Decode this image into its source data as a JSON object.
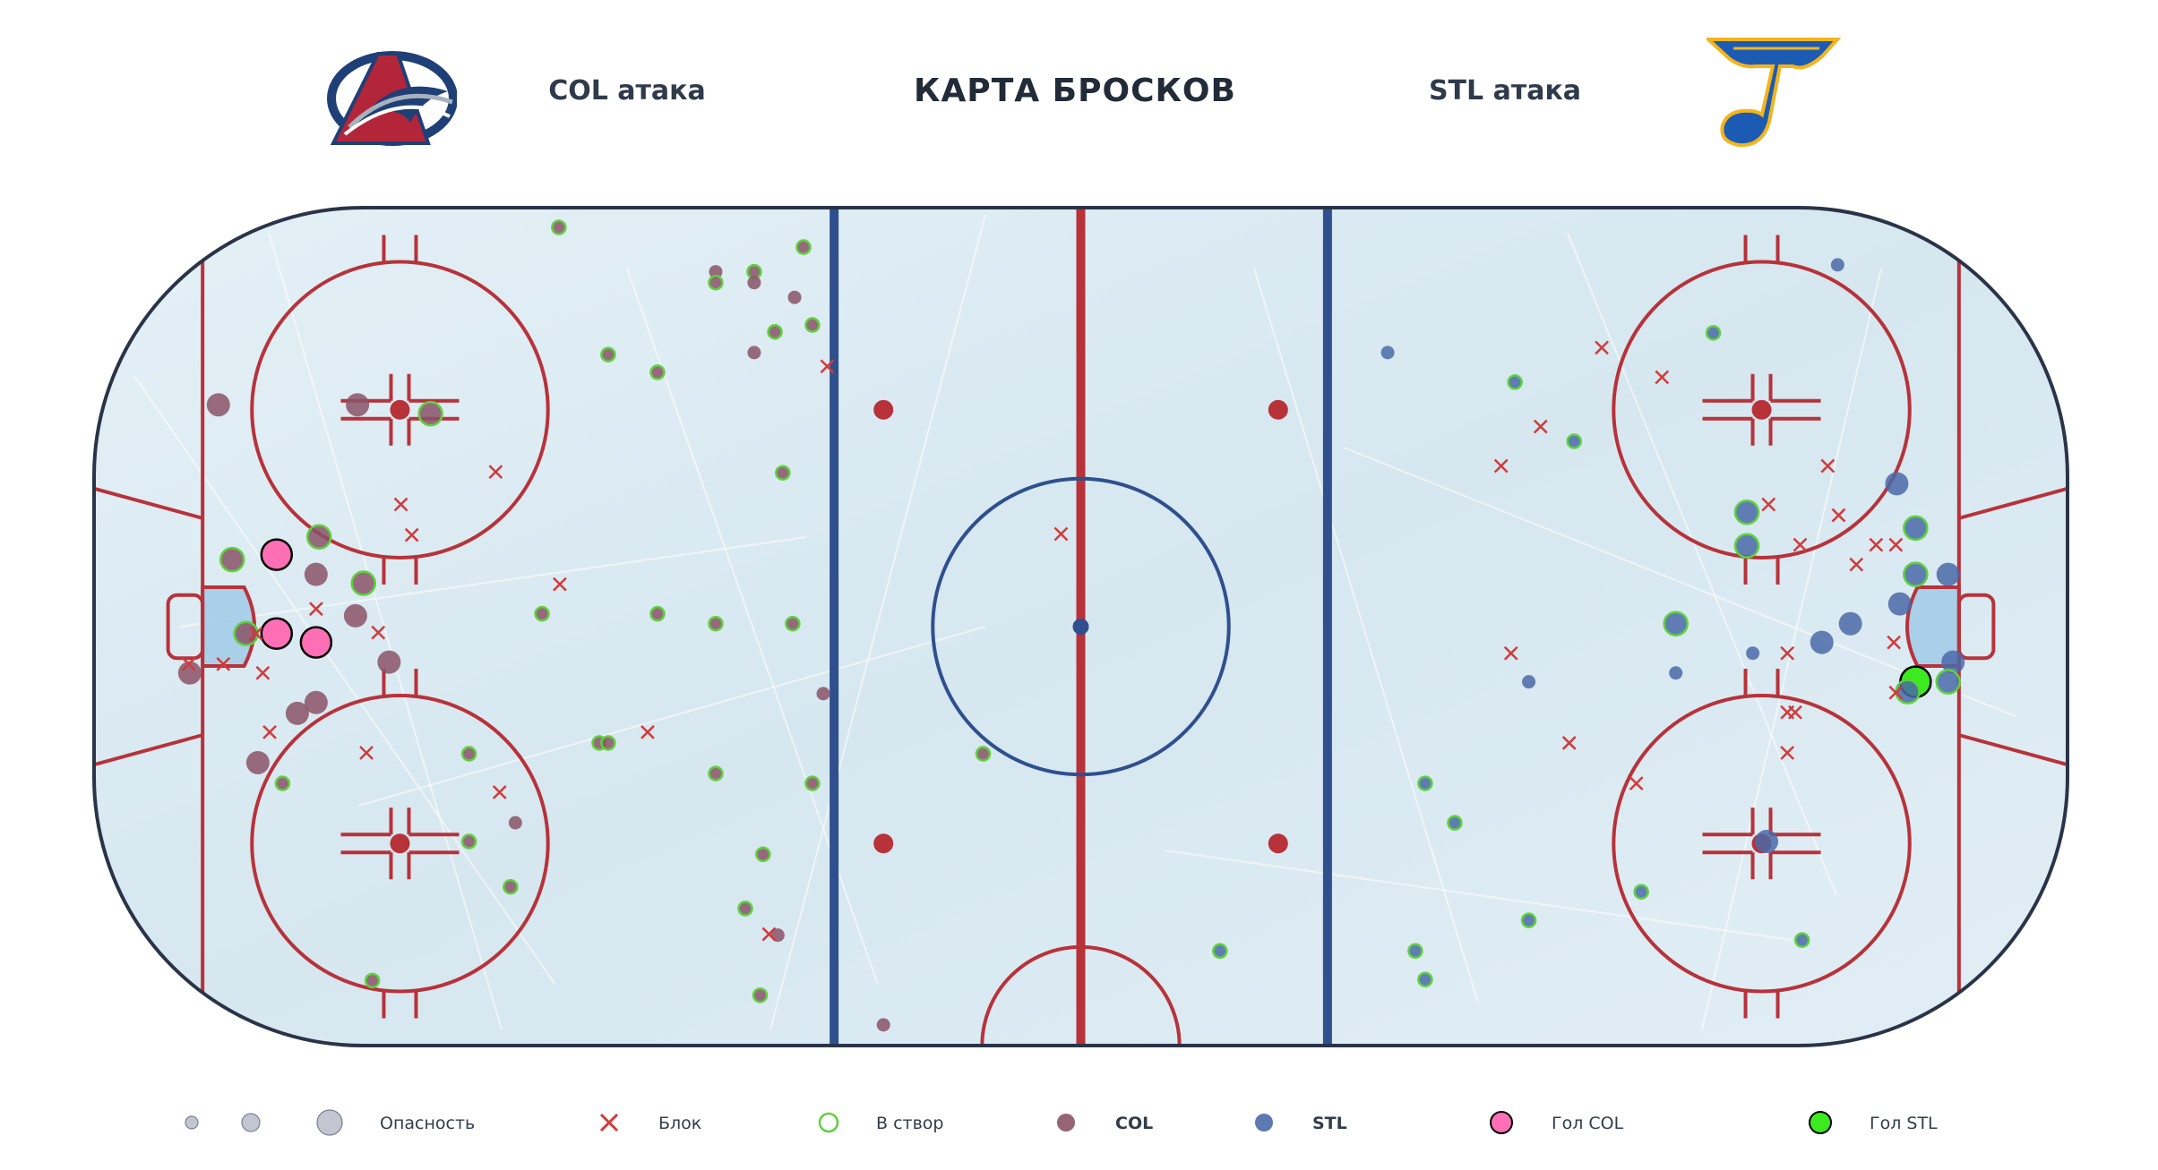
{
  "header": {
    "title": "КАРТА БРОСКОВ",
    "left_team": "COL атака",
    "right_team": "STL атака"
  },
  "teams": {
    "col": {
      "abbr": "COL",
      "logo": "avalanche-logo",
      "color": "#8a5467",
      "goal_color": "#ff6fb5"
    },
    "stl": {
      "abbr": "STL",
      "logo": "blues-note-logo",
      "color": "#4a6aa8",
      "goal_color": "#3bea1f"
    }
  },
  "legend": {
    "danger_label": "Опасность",
    "block_label": "Блок",
    "on_target_label": "В створ",
    "col_label": "COL",
    "stl_label": "STL",
    "goal_col_label": "Гол COL",
    "goal_stl_label": "Гол STL"
  },
  "colors": {
    "ice": "#dcebf3",
    "red_line": "#b8323a",
    "blue_line": "#2f4f8f",
    "board": "#2a3448",
    "block": "#d23a3a",
    "on_target_ring": "#5ed23c"
  },
  "chart_data": {
    "type": "scatter",
    "title": "КАРТА БРОСКОВ",
    "x_range": [
      -100,
      100
    ],
    "y_range": [
      -42.5,
      42.5
    ],
    "shots": [
      {
        "team": "COL",
        "x": -52.9,
        "y": 40.5,
        "size": 1,
        "on_target": true
      },
      {
        "team": "COL",
        "x": -37.0,
        "y": 36.0,
        "size": 1,
        "on_target": false
      },
      {
        "team": "COL",
        "x": -37.0,
        "y": 34.9,
        "size": 1,
        "on_target": true
      },
      {
        "team": "COL",
        "x": -33.1,
        "y": 36.0,
        "size": 1,
        "on_target": true
      },
      {
        "team": "COL",
        "x": -33.1,
        "y": 34.9,
        "size": 1,
        "on_target": false
      },
      {
        "team": "COL",
        "x": -28.1,
        "y": 38.5,
        "size": 1,
        "on_target": true
      },
      {
        "team": "COL",
        "x": -29.0,
        "y": 33.4,
        "size": 1,
        "on_target": false
      },
      {
        "team": "COL",
        "x": -31.0,
        "y": 29.9,
        "size": 1,
        "on_target": true
      },
      {
        "team": "COL",
        "x": -27.2,
        "y": 30.6,
        "size": 1,
        "on_target": true
      },
      {
        "team": "COL",
        "x": -33.1,
        "y": 27.8,
        "size": 1,
        "on_target": false
      },
      {
        "team": "COL",
        "x": -47.9,
        "y": 27.6,
        "size": 1,
        "on_target": true
      },
      {
        "team": "COL",
        "x": -42.9,
        "y": 25.8,
        "size": 1,
        "on_target": true
      },
      {
        "team": "COL",
        "x": -87.4,
        "y": 22.5,
        "size": 2,
        "on_target": false
      },
      {
        "team": "COL",
        "x": -73.3,
        "y": 22.5,
        "size": 2,
        "on_target": false
      },
      {
        "team": "COL",
        "x": -65.9,
        "y": 21.6,
        "size": 2,
        "on_target": true
      },
      {
        "team": "COL",
        "x": -30.2,
        "y": 15.6,
        "size": 1,
        "on_target": true
      },
      {
        "team": "COL",
        "x": -77.2,
        "y": 9.1,
        "size": 2,
        "on_target": true
      },
      {
        "team": "COL",
        "x": -86.0,
        "y": 6.8,
        "size": 2,
        "on_target": true
      },
      {
        "team": "COL",
        "x": -81.5,
        "y": 7.3,
        "size": 3,
        "on_target": true,
        "goal": true
      },
      {
        "team": "COL",
        "x": -77.5,
        "y": 5.3,
        "size": 2,
        "on_target": false
      },
      {
        "team": "COL",
        "x": -72.7,
        "y": 4.4,
        "size": 2,
        "on_target": true
      },
      {
        "team": "COL",
        "x": -54.6,
        "y": 1.3,
        "size": 1,
        "on_target": true
      },
      {
        "team": "COL",
        "x": -42.9,
        "y": 1.3,
        "size": 1,
        "on_target": true
      },
      {
        "team": "COL",
        "x": -37.0,
        "y": 0.3,
        "size": 1,
        "on_target": true
      },
      {
        "team": "COL",
        "x": -29.2,
        "y": 0.3,
        "size": 1,
        "on_target": true
      },
      {
        "team": "COL",
        "x": -73.5,
        "y": 1.1,
        "size": 2,
        "on_target": false
      },
      {
        "team": "COL",
        "x": -84.6,
        "y": -0.7,
        "size": 2,
        "on_target": true
      },
      {
        "team": "COL",
        "x": -81.5,
        "y": -0.7,
        "size": 3,
        "on_target": true,
        "goal": true
      },
      {
        "team": "COL",
        "x": -77.5,
        "y": -1.6,
        "size": 3,
        "on_target": true,
        "goal": true
      },
      {
        "team": "COL",
        "x": -70.1,
        "y": -3.6,
        "size": 2,
        "on_target": false
      },
      {
        "team": "COL",
        "x": -90.3,
        "y": -4.7,
        "size": 2,
        "on_target": false
      },
      {
        "team": "COL",
        "x": -26.1,
        "y": -6.8,
        "size": 1,
        "on_target": false
      },
      {
        "team": "COL",
        "x": -77.5,
        "y": -7.7,
        "size": 2,
        "on_target": false
      },
      {
        "team": "COL",
        "x": -79.4,
        "y": -8.8,
        "size": 2,
        "on_target": false
      },
      {
        "team": "COL",
        "x": -48.8,
        "y": -11.8,
        "size": 1,
        "on_target": true
      },
      {
        "team": "COL",
        "x": -47.9,
        "y": -11.8,
        "size": 1,
        "on_target": true
      },
      {
        "team": "COL",
        "x": -9.9,
        "y": -12.9,
        "size": 1,
        "on_target": true
      },
      {
        "team": "COL",
        "x": -62.0,
        "y": -12.9,
        "size": 1,
        "on_target": true
      },
      {
        "team": "COL",
        "x": -83.4,
        "y": -13.8,
        "size": 2,
        "on_target": false
      },
      {
        "team": "COL",
        "x": -37.0,
        "y": -14.9,
        "size": 1,
        "on_target": true
      },
      {
        "team": "COL",
        "x": -80.9,
        "y": -15.9,
        "size": 1,
        "on_target": true
      },
      {
        "team": "COL",
        "x": -27.2,
        "y": -15.9,
        "size": 1,
        "on_target": true
      },
      {
        "team": "COL",
        "x": -57.3,
        "y": -19.9,
        "size": 1,
        "on_target": false
      },
      {
        "team": "COL",
        "x": -62.0,
        "y": -21.8,
        "size": 1,
        "on_target": true
      },
      {
        "team": "COL",
        "x": -32.2,
        "y": -23.1,
        "size": 1,
        "on_target": true
      },
      {
        "team": "COL",
        "x": -57.8,
        "y": -26.4,
        "size": 1,
        "on_target": true
      },
      {
        "team": "COL",
        "x": -34.0,
        "y": -28.6,
        "size": 1,
        "on_target": true
      },
      {
        "team": "COL",
        "x": -30.7,
        "y": -31.3,
        "size": 1,
        "on_target": false
      },
      {
        "team": "COL",
        "x": -71.8,
        "y": -35.9,
        "size": 1,
        "on_target": true
      },
      {
        "team": "COL",
        "x": -32.5,
        "y": -37.4,
        "size": 1,
        "on_target": true
      },
      {
        "team": "COL",
        "x": -20.0,
        "y": -40.4,
        "size": 1,
        "on_target": false
      },
      {
        "team": "STL",
        "x": 76.7,
        "y": 36.7,
        "size": 1,
        "on_target": false
      },
      {
        "team": "STL",
        "x": 64.1,
        "y": 29.8,
        "size": 1,
        "on_target": true
      },
      {
        "team": "STL",
        "x": 31.1,
        "y": 27.8,
        "size": 1,
        "on_target": false
      },
      {
        "team": "STL",
        "x": 44.0,
        "y": 24.8,
        "size": 1,
        "on_target": true
      },
      {
        "team": "STL",
        "x": 50.0,
        "y": 18.8,
        "size": 1,
        "on_target": true
      },
      {
        "team": "STL",
        "x": 82.7,
        "y": 14.5,
        "size": 2,
        "on_target": false
      },
      {
        "team": "STL",
        "x": 84.6,
        "y": 10.0,
        "size": 2,
        "on_target": true
      },
      {
        "team": "STL",
        "x": 67.5,
        "y": 11.6,
        "size": 2,
        "on_target": true
      },
      {
        "team": "STL",
        "x": 67.5,
        "y": 8.2,
        "size": 2,
        "on_target": true
      },
      {
        "team": "STL",
        "x": 84.6,
        "y": 5.3,
        "size": 2,
        "on_target": true
      },
      {
        "team": "STL",
        "x": 87.9,
        "y": 5.3,
        "size": 2,
        "on_target": false
      },
      {
        "team": "STL",
        "x": 83.0,
        "y": 2.3,
        "size": 2,
        "on_target": false
      },
      {
        "team": "STL",
        "x": 78.0,
        "y": 0.3,
        "size": 2,
        "on_target": false
      },
      {
        "team": "STL",
        "x": 60.3,
        "y": 0.3,
        "size": 2,
        "on_target": true
      },
      {
        "team": "STL",
        "x": 75.1,
        "y": -1.6,
        "size": 2,
        "on_target": false
      },
      {
        "team": "STL",
        "x": 68.1,
        "y": -2.7,
        "size": 1,
        "on_target": false
      },
      {
        "team": "STL",
        "x": 88.4,
        "y": -3.6,
        "size": 2,
        "on_target": false
      },
      {
        "team": "STL",
        "x": 60.3,
        "y": -4.7,
        "size": 1,
        "on_target": false
      },
      {
        "team": "STL",
        "x": 45.4,
        "y": -5.6,
        "size": 1,
        "on_target": false
      },
      {
        "team": "STL",
        "x": 84.6,
        "y": -5.6,
        "size": 3,
        "on_target": true,
        "goal": true
      },
      {
        "team": "STL",
        "x": 87.9,
        "y": -5.6,
        "size": 2,
        "on_target": true
      },
      {
        "team": "STL",
        "x": 83.8,
        "y": -6.6,
        "size": 2,
        "on_target": true
      },
      {
        "team": "STL",
        "x": 34.9,
        "y": -15.9,
        "size": 1,
        "on_target": true
      },
      {
        "team": "STL",
        "x": 37.9,
        "y": -19.9,
        "size": 1,
        "on_target": true
      },
      {
        "team": "STL",
        "x": 69.5,
        "y": -21.8,
        "size": 2,
        "on_target": false
      },
      {
        "team": "STL",
        "x": 56.8,
        "y": -26.9,
        "size": 1,
        "on_target": true
      },
      {
        "team": "STL",
        "x": 45.4,
        "y": -29.8,
        "size": 1,
        "on_target": true
      },
      {
        "team": "STL",
        "x": 33.9,
        "y": -32.9,
        "size": 1,
        "on_target": true
      },
      {
        "team": "STL",
        "x": 73.1,
        "y": -31.8,
        "size": 1,
        "on_target": true
      },
      {
        "team": "STL",
        "x": 14.1,
        "y": -32.9,
        "size": 1,
        "on_target": true
      },
      {
        "team": "STL",
        "x": 34.9,
        "y": -35.8,
        "size": 1,
        "on_target": true
      }
    ],
    "blocks": [
      {
        "x": -25.7,
        "y": 26.4
      },
      {
        "x": -68.9,
        "y": 12.4
      },
      {
        "x": -67.8,
        "y": 9.3
      },
      {
        "x": -59.3,
        "y": 15.7
      },
      {
        "x": -52.8,
        "y": 4.3
      },
      {
        "x": -77.5,
        "y": 1.8
      },
      {
        "x": -83.6,
        "y": -0.7
      },
      {
        "x": -86.9,
        "y": -3.8
      },
      {
        "x": -90.4,
        "y": -3.8
      },
      {
        "x": -82.9,
        "y": -4.7
      },
      {
        "x": -71.2,
        "y": -0.6
      },
      {
        "x": -82.2,
        "y": -10.7
      },
      {
        "x": -72.4,
        "y": -12.8
      },
      {
        "x": -43.9,
        "y": -10.7
      },
      {
        "x": -58.9,
        "y": -16.8
      },
      {
        "x": -31.6,
        "y": -31.2
      },
      {
        "x": -2.0,
        "y": 9.4
      },
      {
        "x": 52.8,
        "y": 28.3
      },
      {
        "x": 58.9,
        "y": 25.3
      },
      {
        "x": 46.6,
        "y": 20.3
      },
      {
        "x": 42.6,
        "y": 16.3
      },
      {
        "x": 75.7,
        "y": 16.3
      },
      {
        "x": 69.7,
        "y": 12.4
      },
      {
        "x": 76.8,
        "y": 11.3
      },
      {
        "x": 72.9,
        "y": 8.3
      },
      {
        "x": 80.6,
        "y": 8.3
      },
      {
        "x": 82.6,
        "y": 8.3
      },
      {
        "x": 78.6,
        "y": 6.3
      },
      {
        "x": 43.6,
        "y": -2.7
      },
      {
        "x": 71.6,
        "y": -2.7
      },
      {
        "x": 82.4,
        "y": -1.6
      },
      {
        "x": 82.6,
        "y": -6.7
      },
      {
        "x": 71.6,
        "y": -8.7
      },
      {
        "x": 72.4,
        "y": -8.7
      },
      {
        "x": 49.5,
        "y": -11.8
      },
      {
        "x": 71.6,
        "y": -12.8
      },
      {
        "x": 56.3,
        "y": -15.9
      }
    ]
  }
}
